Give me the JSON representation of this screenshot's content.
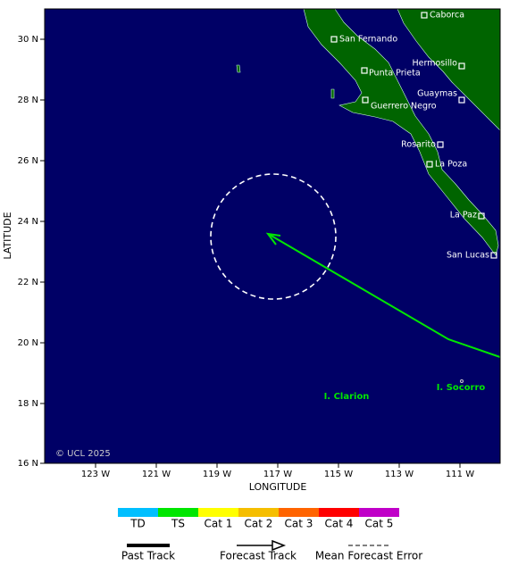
{
  "map": {
    "x_axis": {
      "title": "LONGITUDE",
      "ticks": [
        "123 W",
        "121 W",
        "119 W",
        "117 W",
        "115 W",
        "113 W",
        "111 W"
      ]
    },
    "y_axis": {
      "title": "LATITUDE",
      "ticks": [
        "30 N",
        "28 N",
        "26 N",
        "24 N",
        "22 N",
        "20 N",
        "18 N",
        "16 N"
      ]
    },
    "places": [
      "Caborca",
      "San Fernando",
      "Hermosillo",
      "Punta Prieta",
      "Guaymas",
      "Guerrero Negro",
      "Rosarito",
      "La Poza",
      "La Paz",
      "San Lucas"
    ],
    "islands": [
      "I. Clarion",
      "I. Socorro"
    ],
    "copyright": "© UCL 2025"
  },
  "legend": {
    "intensity": [
      {
        "label": "TD",
        "color": "#00bfff"
      },
      {
        "label": "TS",
        "color": "#00e600"
      },
      {
        "label": "Cat 1",
        "color": "#ffff00"
      },
      {
        "label": "Cat 2",
        "color": "#f5be00"
      },
      {
        "label": "Cat 3",
        "color": "#ff6400"
      },
      {
        "label": "Cat 4",
        "color": "#ff0000"
      },
      {
        "label": "Cat 5",
        "color": "#c000c8"
      }
    ],
    "tracks": [
      "Past Track",
      "Forecast Track",
      "Mean Forecast Error"
    ]
  }
}
